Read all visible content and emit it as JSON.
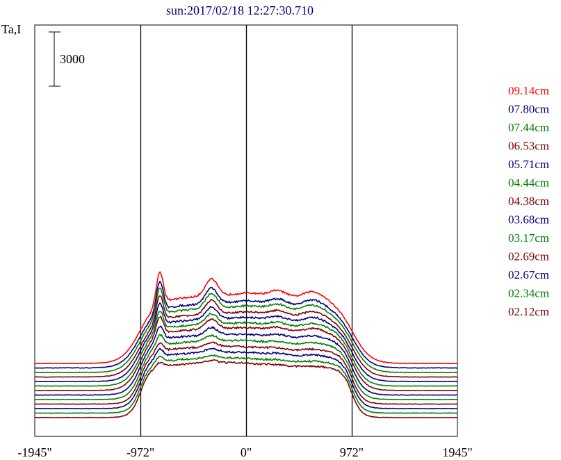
{
  "chart_data": {
    "type": "line",
    "title": "sun:2017/02/18 12:27:30.710",
    "ylabel": "Ta,I",
    "scale_bar_label": "3000",
    "x_tick_labels": [
      "-1945\"",
      "-972\"",
      "0\"",
      "972\"",
      "1945\""
    ],
    "x_ticks": [
      -1945,
      -972,
      0,
      972,
      1945
    ],
    "xlim": [
      -1945,
      1945
    ],
    "vertical_lines_at": [
      -972,
      0,
      972
    ],
    "grid": false,
    "legend_placement": "right",
    "colors": {
      "red": "#ff0000",
      "navy": "#000080",
      "green": "#008000",
      "maroon": "#800000",
      "axis": "#000000"
    },
    "series": [
      {
        "name": "09.14cm",
        "color": "#ff0000",
        "baseline": 1900,
        "disk": 3150,
        "limb": 6
      },
      {
        "name": "07.80cm",
        "color": "#000080",
        "baseline": 1650,
        "disk": 3000,
        "limb": 5.5
      },
      {
        "name": "07.44cm",
        "color": "#008000",
        "baseline": 1400,
        "disk": 3000,
        "limb": 5.2
      },
      {
        "name": "06.53cm",
        "color": "#800000",
        "baseline": 1150,
        "disk": 2950,
        "limb": 4.8
      },
      {
        "name": "05.71cm",
        "color": "#000080",
        "baseline": 900,
        "disk": 2950,
        "limb": 4.2
      },
      {
        "name": "04.44cm",
        "color": "#008000",
        "baseline": 650,
        "disk": 2950,
        "limb": 3.6
      },
      {
        "name": "04.38cm",
        "color": "#800000",
        "baseline": 400,
        "disk": 2950,
        "limb": 3.4
      },
      {
        "name": "03.68cm",
        "color": "#000080",
        "baseline": 150,
        "disk": 2900,
        "limb": 2.6
      },
      {
        "name": "03.17cm",
        "color": "#008000",
        "baseline": -100,
        "disk": 2850,
        "limb": 2.0
      },
      {
        "name": "02.69cm",
        "color": "#800000",
        "baseline": -350,
        "disk": 2800,
        "limb": 1.5
      },
      {
        "name": "02.67cm",
        "color": "#000080",
        "baseline": -600,
        "disk": 2750,
        "limb": 1.4
      },
      {
        "name": "02.34cm",
        "color": "#008000",
        "baseline": -850,
        "disk": 2700,
        "limb": 1.0
      },
      {
        "name": "02.12cm",
        "color": "#800000",
        "baseline": -1100,
        "disk": 2700,
        "limb": 0.8
      }
    ]
  }
}
